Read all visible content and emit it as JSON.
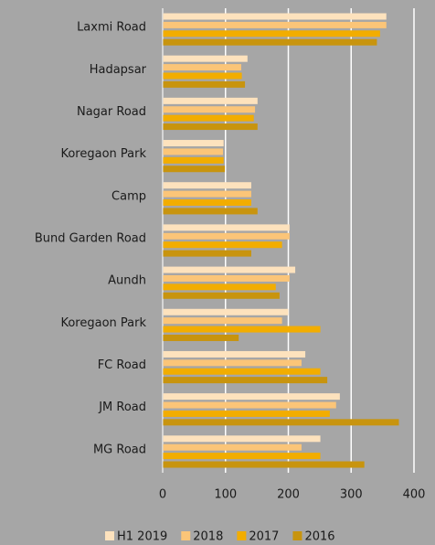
{
  "chart_data": {
    "type": "hbar",
    "categories": [
      "Laxmi Road",
      "Hadapsar",
      "Nagar Road",
      "Koregaon Park",
      "Camp",
      "Bund Garden Road",
      "Aundh",
      "Koregaon Park",
      "FC Road",
      "JM Road",
      "MG Road"
    ],
    "series": [
      {
        "name": "H1 2019",
        "color": "#fde2bd",
        "values": [
          356,
          135,
          151,
          97,
          141,
          202,
          211,
          200,
          227,
          282,
          251
        ]
      },
      {
        "name": "2018",
        "color": "#fbc578",
        "values": [
          356,
          125,
          147,
          96,
          141,
          202,
          202,
          190,
          221,
          276,
          221
        ]
      },
      {
        "name": "2017",
        "color": "#f2ad00",
        "values": [
          346,
          126,
          145,
          97,
          141,
          190,
          180,
          251,
          251,
          266,
          251
        ]
      },
      {
        "name": "2016",
        "color": "#c8940e",
        "values": [
          341,
          131,
          151,
          99,
          151,
          141,
          186,
          121,
          262,
          376,
          321
        ]
      }
    ],
    "xlim": [
      0,
      400
    ],
    "xticks": [
      0,
      100,
      200,
      300,
      400
    ],
    "grid": true,
    "legend": "bottom"
  }
}
